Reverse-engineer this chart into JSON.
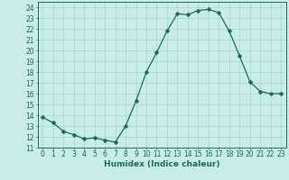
{
  "x": [
    0,
    1,
    2,
    3,
    4,
    5,
    6,
    7,
    8,
    9,
    10,
    11,
    12,
    13,
    14,
    15,
    16,
    17,
    18,
    19,
    20,
    21,
    22,
    23
  ],
  "y": [
    13.8,
    13.3,
    12.5,
    12.2,
    11.8,
    11.9,
    11.7,
    11.5,
    13.0,
    15.3,
    18.0,
    19.8,
    21.8,
    23.4,
    23.3,
    23.7,
    23.8,
    23.5,
    21.8,
    19.5,
    17.1,
    16.2,
    16.0,
    16.0
  ],
  "line_color": "#1a6b5a",
  "marker": "D",
  "marker_size": 2.5,
  "bg_color": "#c8ece8",
  "grid_color": "#aad4d0",
  "xlabel": "Humidex (Indice chaleur)",
  "ylabel_ticks": [
    11,
    12,
    13,
    14,
    15,
    16,
    17,
    18,
    19,
    20,
    21,
    22,
    23,
    24
  ],
  "xlim": [
    -0.5,
    23.5
  ],
  "ylim": [
    11,
    24.5
  ],
  "tick_color": "#1a6b5a",
  "label_fontsize": 6.5,
  "tick_fontsize": 5.5,
  "linewidth": 0.9
}
